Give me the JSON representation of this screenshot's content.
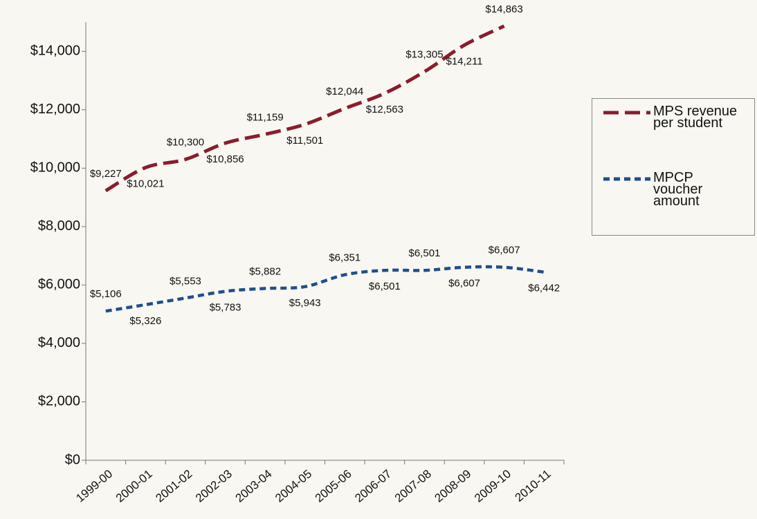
{
  "chart_data": {
    "type": "line",
    "categories": [
      "1999-00",
      "2000-01",
      "2001-02",
      "2002-03",
      "2003-04",
      "2004-05",
      "2005-06",
      "2006-07",
      "2007-08",
      "2008-09",
      "2009-10",
      "2010-11"
    ],
    "series": [
      {
        "name": "MPS revenue per student",
        "color": "#8b1c2c",
        "values": [
          9227,
          10021,
          10300,
          10856,
          11159,
          11501,
          12044,
          12563,
          13305,
          14211,
          14863,
          null
        ],
        "value_labels": [
          "$9,227",
          "$10,021",
          "$10,300",
          "$10,856",
          "$11,159",
          "$11,501",
          "$12,044",
          "$12,563",
          "$13,305",
          "$14,211",
          "$14,863",
          null
        ]
      },
      {
        "name": "MPCP voucher amount",
        "color": "#1f4e8c",
        "values": [
          5106,
          5326,
          5553,
          5783,
          5882,
          5943,
          6351,
          6501,
          6501,
          6607,
          6607,
          6442
        ],
        "value_labels": [
          "$5,106",
          "$5,326",
          "$5,553",
          "$5,783",
          "$5,882",
          "$5,943",
          "$6,351",
          "$6,501",
          "$6,501",
          "$6,607",
          "$6,607",
          "$6,442"
        ]
      }
    ],
    "ylim": [
      0,
      15000
    ],
    "yticks": [
      {
        "value": 0,
        "label": "$0"
      },
      {
        "value": 2000,
        "label": "$2,000"
      },
      {
        "value": 4000,
        "label": "$4,000"
      },
      {
        "value": 6000,
        "label": "$6,000"
      },
      {
        "value": 8000,
        "label": "$8,000"
      },
      {
        "value": 10000,
        "label": "$10,000"
      },
      {
        "value": 12000,
        "label": "$12,000"
      },
      {
        "value": 14000,
        "label": "$14,000"
      }
    ],
    "legend": "right"
  }
}
